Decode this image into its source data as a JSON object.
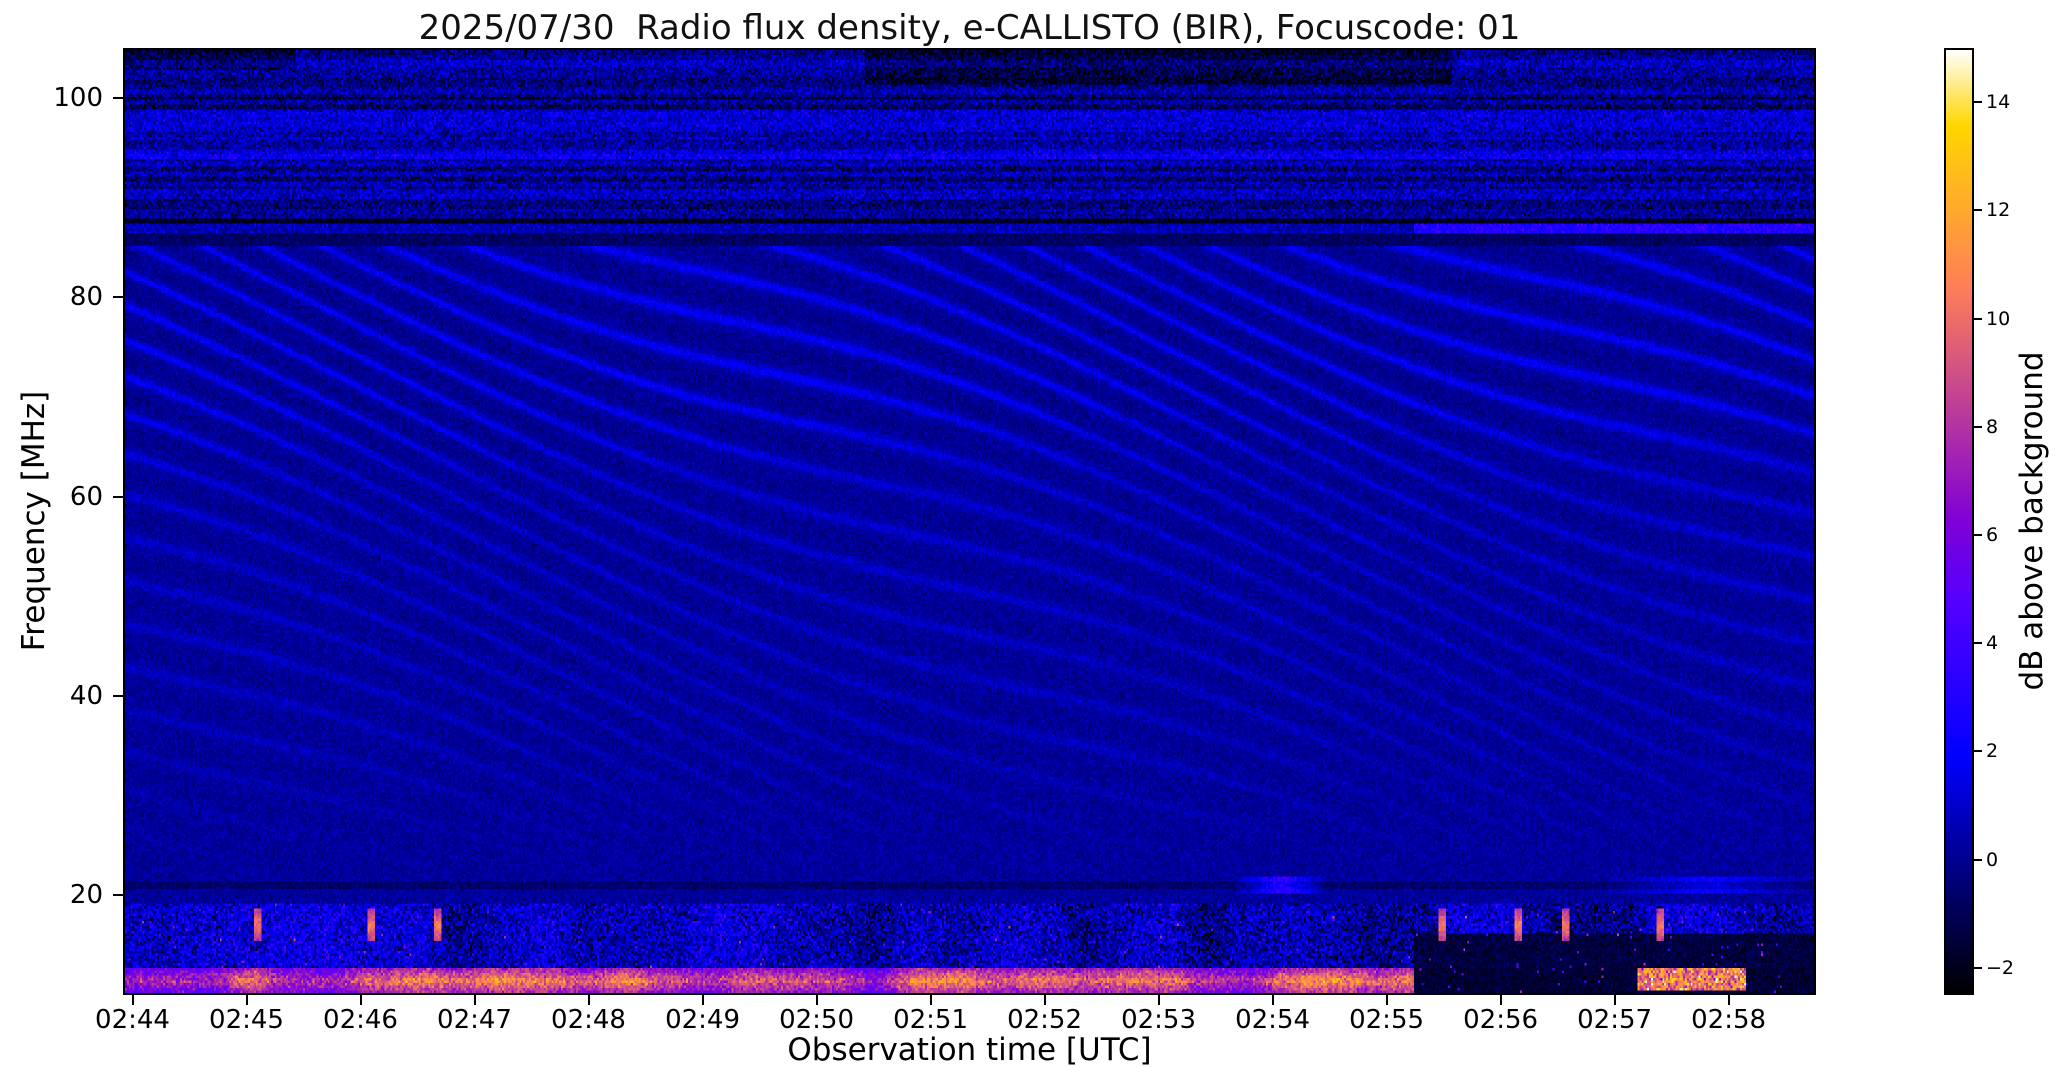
{
  "chart_data": {
    "type": "heatmap",
    "subtype": "radio-spectrogram",
    "title": "2025/07/30  Radio flux density, e-CALLISTO (BIR), Focuscode: 01",
    "xlabel": "Observation time [UTC]",
    "ylabel": "Frequency [MHz]",
    "x_ticks": [
      "02:44",
      "02:45",
      "02:46",
      "02:47",
      "02:48",
      "02:49",
      "02:50",
      "02:51",
      "02:52",
      "02:53",
      "02:54",
      "02:55",
      "02:56",
      "02:57",
      "02:58"
    ],
    "x_tick_seconds": [
      5,
      65,
      125,
      185,
      245,
      305,
      365,
      425,
      485,
      545,
      605,
      665,
      725,
      785,
      845
    ],
    "time_span_seconds": 891,
    "y_ticks": [
      20,
      40,
      60,
      80,
      100
    ],
    "y_range": [
      10,
      105
    ],
    "grid": false,
    "colorbar": {
      "label": "dB above background",
      "vmin": -2.5,
      "vmax": 15,
      "colormap": "gnuplot2",
      "colormap_stops": [
        {
          "pos": 0,
          "color": "#000000"
        },
        {
          "pos": 0.143,
          "color": "#000092"
        },
        {
          "pos": 0.25,
          "color": "#0000ff"
        },
        {
          "pos": 0.5,
          "color": "#8000d6"
        },
        {
          "pos": 0.75,
          "color": "#ff8057"
        },
        {
          "pos": 0.92,
          "color": "#ffd600"
        },
        {
          "pos": 1,
          "color": "#ffffff"
        }
      ],
      "ticks": [
        {
          "value": 14,
          "label": "14"
        },
        {
          "value": 12,
          "label": "12"
        },
        {
          "value": 10,
          "label": "10"
        },
        {
          "value": 8,
          "label": "8"
        },
        {
          "value": 6,
          "label": "6"
        },
        {
          "value": 4,
          "label": "4"
        },
        {
          "value": 2,
          "label": "2"
        },
        {
          "value": 0,
          "label": "0"
        },
        {
          "value": -2,
          "label": "−2"
        }
      ]
    },
    "features": {
      "background": {
        "mean": 0.15,
        "noise_sd": 0.35
      },
      "ionospheric_ripples": {
        "f_min": 22,
        "f_max": 86,
        "period_mhz": 3.6,
        "drift_s": 48,
        "wobble_s": 70,
        "max_db": 1.6
      },
      "fm_broadcast_band": {
        "f_min": 88.0,
        "f_max": 105,
        "row_db_min": -1.2,
        "row_db_max": 1.6,
        "speckle_sd": 0.9
      },
      "quiet_gap_86mhz": {
        "f_min": 85.3,
        "f_max": 88.0,
        "db": -0.8
      },
      "band_87mhz_line": {
        "f_center": 87.0,
        "base_db": 1.2,
        "bright_after_s": 680,
        "bright_db": 2.4
      },
      "dark_patches": [
        {
          "t0": 390,
          "t1": 700,
          "f0": 101.5,
          "f1": 105,
          "db": -1.4
        },
        {
          "t0": 0,
          "t1": 90,
          "f0": 103,
          "f1": 105,
          "db": -1.2
        },
        {
          "t0": 0,
          "t1": 891,
          "f0": 87.6,
          "f1": 89.0,
          "db": -1.2
        },
        {
          "t0": 0,
          "t1": 891,
          "f0": 98.8,
          "f1": 100.2,
          "db": -0.9
        }
      ],
      "line_21mhz": {
        "f_center": 20.8,
        "db": -0.8,
        "blobs": [
          {
            "t0": 585,
            "t1": 635,
            "db": 4.5
          },
          {
            "t0": 778,
            "t1": 891,
            "db": 2.6
          }
        ]
      },
      "speckle_band": {
        "f_min": 12.5,
        "f_max": 19,
        "db": 2.0,
        "pink_dot_prob": 0.004,
        "pink_db": 5.5
      },
      "burst_band": {
        "f_min": 10,
        "f_max": 12.6,
        "active_until_s": 680,
        "base_db": 8.5,
        "var_db": 4.5,
        "post_dot_prob": 0.01,
        "post_patches": [
          {
            "t0": 798,
            "t1": 855,
            "f0": 10.3,
            "f1": 12.4,
            "db": 10.5
          }
        ]
      },
      "vertical_ticks": {
        "f_min": 15.2,
        "f_max": 18.4,
        "half_width_s": 2.5,
        "db": 10.5,
        "times_s": [
          70,
          130,
          165,
          695,
          735,
          760,
          810
        ]
      }
    }
  }
}
